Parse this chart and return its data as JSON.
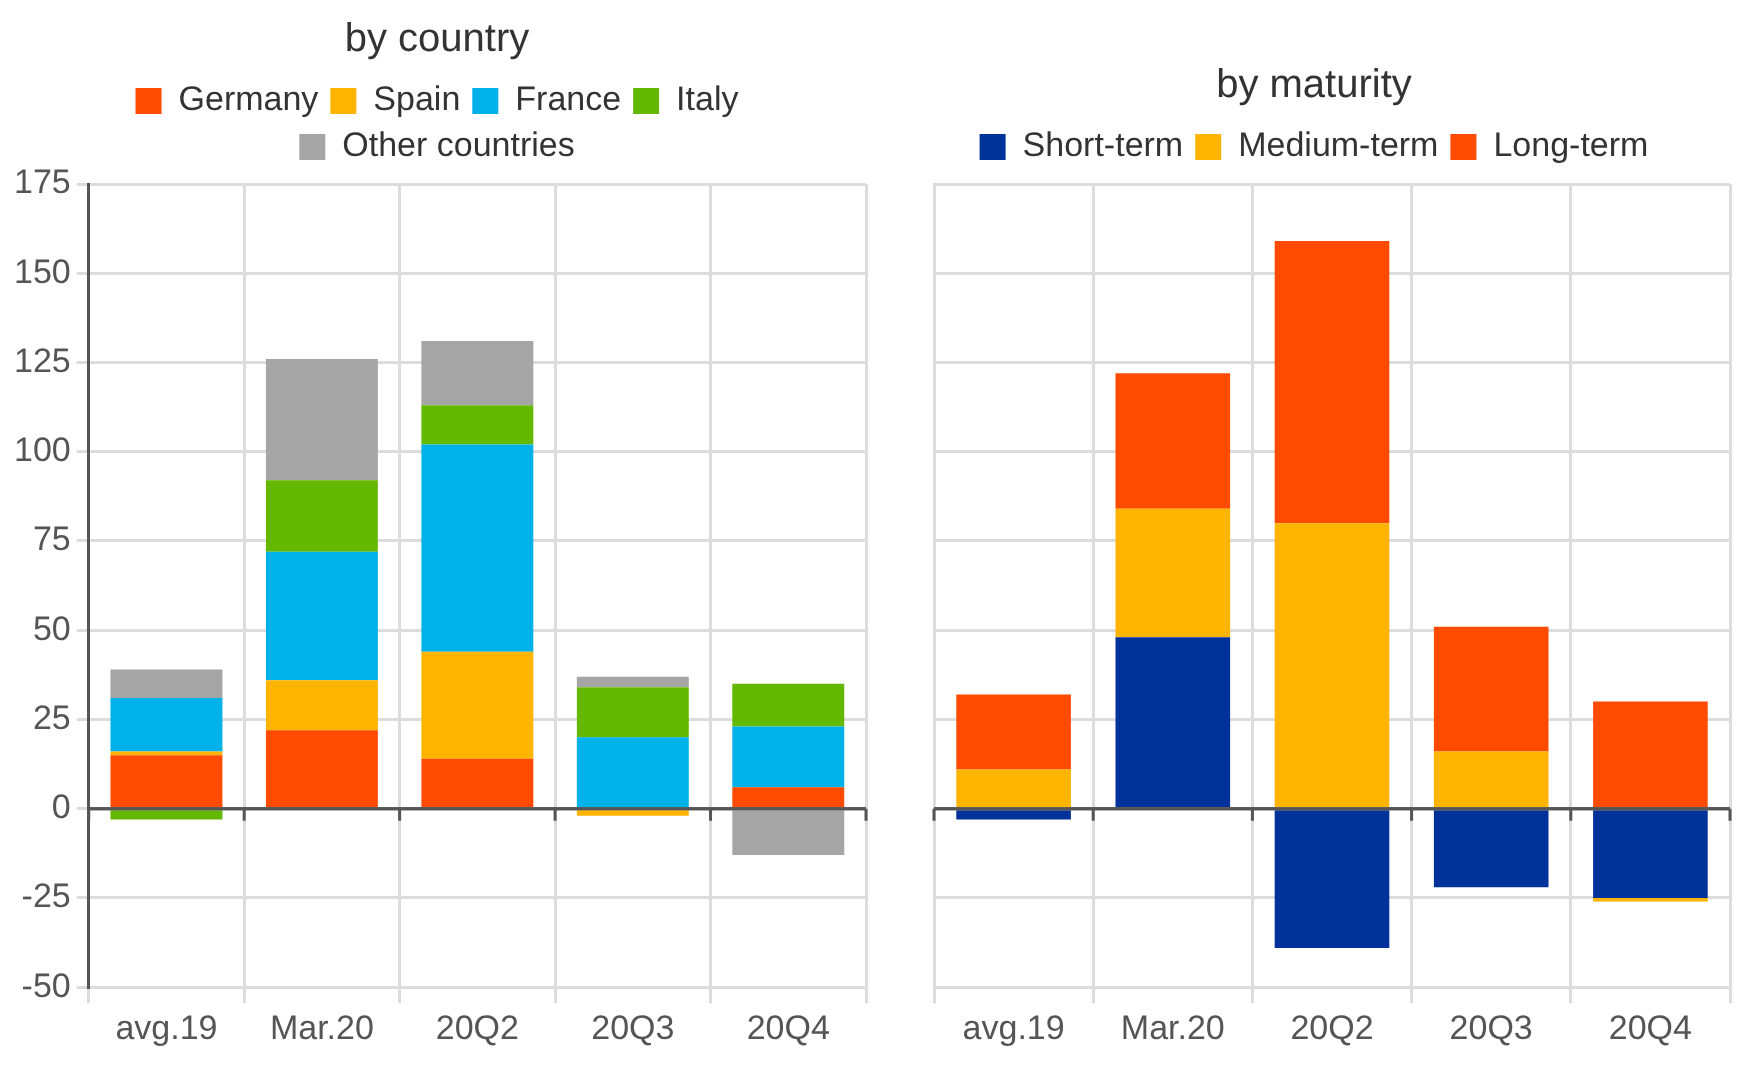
{
  "chart_data": [
    {
      "type": "bar",
      "title": "by country",
      "categories": [
        "avg.19",
        "Mar.20",
        "20Q2",
        "20Q3",
        "20Q4"
      ],
      "stacked": true,
      "legend": "top",
      "grid": true,
      "ylim": [
        -50,
        175
      ],
      "yticks": [
        -50,
        -25,
        0,
        25,
        50,
        75,
        100,
        125,
        150,
        175
      ],
      "series": [
        {
          "name": "Germany",
          "color": "#ff4b00",
          "values": [
            15,
            22,
            14,
            0,
            6
          ]
        },
        {
          "name": "Spain",
          "color": "#ffb400",
          "values": [
            1,
            14,
            30,
            -2,
            0
          ]
        },
        {
          "name": "France",
          "color": "#00b1ea",
          "values": [
            15,
            36,
            58,
            20,
            17
          ]
        },
        {
          "name": "Italy",
          "color": "#65b800",
          "values": [
            -3,
            20,
            11,
            14,
            12
          ]
        },
        {
          "name": "Other countries",
          "color": "#a5a5a5",
          "values": [
            8,
            34,
            18,
            3,
            -13
          ]
        }
      ]
    },
    {
      "type": "bar",
      "title": "by maturity",
      "categories": [
        "avg.19",
        "Mar.20",
        "20Q2",
        "20Q3",
        "20Q4"
      ],
      "stacked": true,
      "legend": "top",
      "grid": true,
      "tick_labels": "x",
      "ylim": [
        -50,
        175
      ],
      "yticks": [
        -50,
        -25,
        0,
        25,
        50,
        75,
        100,
        125,
        150,
        175
      ],
      "series": [
        {
          "name": "Short-term",
          "color": "#003299",
          "values": [
            -3,
            48,
            -39,
            -22,
            -25
          ]
        },
        {
          "name": "Medium-term",
          "color": "#ffb400",
          "values": [
            11,
            36,
            80,
            16,
            -1
          ]
        },
        {
          "name": "Long-term",
          "color": "#ff4b00",
          "values": [
            21,
            38,
            79,
            35,
            30
          ]
        }
      ]
    }
  ]
}
